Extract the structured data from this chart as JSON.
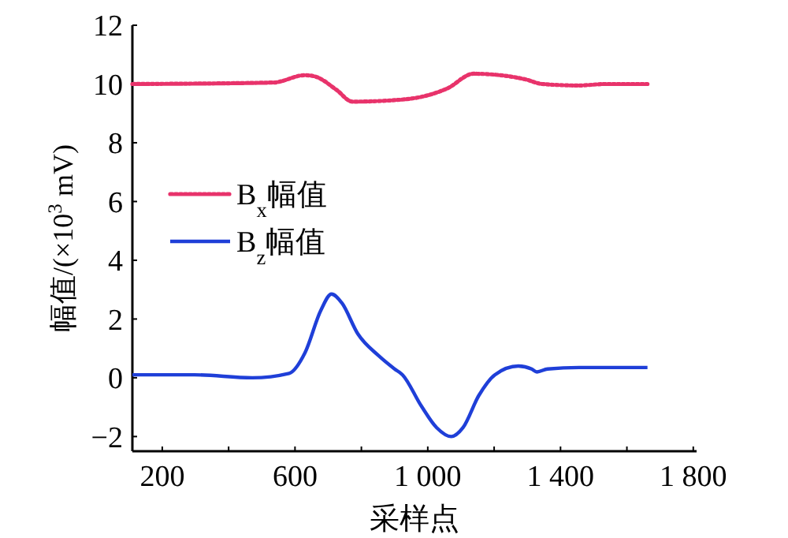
{
  "chart_data": {
    "type": "line",
    "xlabel": "采样点",
    "ylabel": "幅值/(×10$^{3}$ mV)",
    "xlim": [
      110,
      1810
    ],
    "ylim": [
      -2.5,
      12
    ],
    "xticks": [
      200,
      {
        "value": 400,
        "label": null
      },
      600,
      {
        "value": 800,
        "label": null
      },
      {
        "value": 1000,
        "label": "1 000"
      },
      {
        "value": 1200,
        "label": null
      },
      {
        "value": 1400,
        "label": "1 400"
      },
      {
        "value": 1600,
        "label": null
      },
      {
        "value": 1800,
        "label": "1 800"
      }
    ],
    "yticks": [
      -2,
      0,
      2,
      4,
      6,
      8,
      10,
      12
    ],
    "grid": false,
    "legend": "left",
    "series": [
      {
        "name": "B$_{x}$幅值",
        "color": "#e8336b",
        "line_style": "dotted",
        "x": [
          110,
          535,
          630,
          662,
          725,
          773,
          900,
          995,
          1059,
          1138,
          1218,
          1297,
          1344,
          1456,
          1535,
          1662
        ],
        "values": [
          10,
          10.05,
          10.3,
          10.25,
          9.8,
          9.4,
          9.45,
          9.6,
          9.85,
          10.35,
          10.3,
          10.15,
          10,
          9.95,
          10,
          10
        ]
      },
      {
        "name": "B$_{z}$幅值",
        "color": "#1f3fd8",
        "line_style": "solid",
        "x": [
          110,
          297,
          471,
          582,
          630,
          678,
          710,
          741,
          789,
          852,
          900,
          924,
          980,
          1027,
          1071,
          1106,
          1154,
          1202,
          1273,
          1313,
          1329,
          1361,
          1456,
          1662
        ],
        "values": [
          0.1,
          0.1,
          0,
          0.15,
          0.85,
          2.3,
          2.85,
          2.55,
          1.5,
          0.75,
          0.3,
          0.1,
          -0.95,
          -1.7,
          -2,
          -1.7,
          -0.6,
          0.1,
          0.4,
          0.3,
          0.2,
          0.3,
          0.35,
          0.35
        ]
      }
    ]
  }
}
